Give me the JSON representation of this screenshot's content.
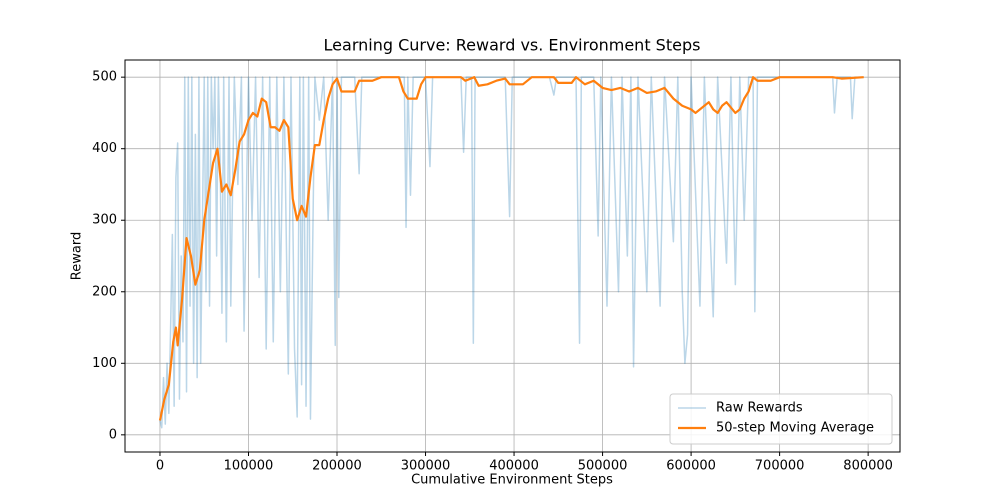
{
  "chart_data": {
    "type": "line",
    "title": "Learning Curve: Reward vs. Environment Steps",
    "x_label": "Cumulative Environment Steps",
    "y_label": "Reward",
    "xlim": [
      -39500,
      836000
    ],
    "ylim": [
      -24,
      524
    ],
    "xticks": [
      0,
      100000,
      200000,
      300000,
      400000,
      500000,
      600000,
      700000,
      800000
    ],
    "yticks": [
      0,
      100,
      200,
      300,
      400,
      500
    ],
    "grid": true,
    "legend": "lower right",
    "series": [
      {
        "name": "Raw Rewards",
        "color": "#1f77b4",
        "opacity": 0.3,
        "width": 1.5,
        "x": [
          0,
          2000,
          4000,
          6000,
          8000,
          10000,
          12000,
          14000,
          16000,
          18000,
          20000,
          22000,
          24000,
          26000,
          28000,
          30000,
          32000,
          34000,
          36000,
          38000,
          40000,
          42000,
          44000,
          46000,
          48000,
          50000,
          52000,
          54000,
          56000,
          58000,
          60000,
          62000,
          64000,
          66000,
          68000,
          70000,
          72000,
          75000,
          78000,
          80000,
          84000,
          88000,
          92000,
          95000,
          100000,
          104000,
          108000,
          112000,
          116000,
          120000,
          124000,
          128000,
          132000,
          136000,
          140000,
          145000,
          148000,
          152000,
          155000,
          158000,
          160000,
          162000,
          165000,
          168000,
          170000,
          175000,
          180000,
          185000,
          190000,
          195000,
          198000,
          200000,
          202000,
          205000,
          220000,
          225000,
          228000,
          260000,
          276000,
          278000,
          280000,
          283000,
          286000,
          300000,
          305000,
          308000,
          340000,
          343000,
          346000,
          352000,
          354000,
          356000,
          390000,
          395000,
          398000,
          420000,
          440000,
          445000,
          448000,
          470000,
          474000,
          476000,
          490000,
          495000,
          498000,
          505000,
          510000,
          518000,
          522000,
          528000,
          532000,
          535000,
          540000,
          550000,
          555000,
          565000,
          570000,
          580000,
          585000,
          590000,
          593000,
          596000,
          600000,
          610000,
          615000,
          625000,
          630000,
          640000,
          645000,
          650000,
          655000,
          660000,
          665000,
          670000,
          672000,
          675000,
          760000,
          762000,
          765000,
          780000,
          782000,
          785000,
          795000
        ],
        "values": [
          20,
          10,
          80,
          15,
          100,
          30,
          150,
          280,
          40,
          360,
          408,
          50,
          250,
          130,
          500,
          60,
          500,
          180,
          500,
          100,
          420,
          80,
          500,
          100,
          300,
          500,
          200,
          500,
          180,
          500,
          400,
          500,
          250,
          500,
          380,
          170,
          500,
          130,
          500,
          180,
          500,
          350,
          500,
          145,
          500,
          300,
          500,
          220,
          500,
          120,
          500,
          130,
          500,
          200,
          500,
          85,
          500,
          120,
          25,
          500,
          70,
          500,
          40,
          500,
          22,
          500,
          440,
          500,
          300,
          500,
          125,
          500,
          192,
          500,
          500,
          365,
          500,
          500,
          500,
          290,
          500,
          335,
          500,
          500,
          375,
          500,
          500,
          395,
          500,
          500,
          128,
          500,
          500,
          305,
          500,
          500,
          500,
          475,
          500,
          500,
          128,
          500,
          500,
          278,
          500,
          180,
          500,
          200,
          500,
          250,
          500,
          95,
          500,
          200,
          500,
          180,
          500,
          270,
          500,
          200,
          100,
          140,
          500,
          180,
          500,
          165,
          500,
          240,
          500,
          210,
          500,
          300,
          500,
          500,
          172,
          500,
          500,
          450,
          500,
          500,
          442,
          500,
          500
        ]
      },
      {
        "name": "50-step Moving Average",
        "color": "#ff7f0e",
        "opacity": 1,
        "width": 2.2,
        "x": [
          0,
          5000,
          10000,
          15000,
          18000,
          20000,
          25000,
          30000,
          35000,
          40000,
          45000,
          50000,
          55000,
          60000,
          65000,
          70000,
          75000,
          80000,
          85000,
          90000,
          95000,
          100000,
          105000,
          110000,
          115000,
          120000,
          125000,
          130000,
          135000,
          140000,
          145000,
          150000,
          155000,
          160000,
          165000,
          170000,
          175000,
          180000,
          185000,
          190000,
          195000,
          200000,
          205000,
          220000,
          225000,
          240000,
          250000,
          270000,
          275000,
          280000,
          290000,
          295000,
          300000,
          330000,
          340000,
          345000,
          355000,
          360000,
          370000,
          380000,
          390000,
          395000,
          410000,
          420000,
          440000,
          445000,
          450000,
          465000,
          470000,
          480000,
          490000,
          500000,
          510000,
          520000,
          530000,
          540000,
          550000,
          560000,
          570000,
          580000,
          590000,
          600000,
          605000,
          610000,
          620000,
          625000,
          630000,
          635000,
          640000,
          650000,
          655000,
          660000,
          665000,
          670000,
          675000,
          690000,
          700000,
          740000,
          760000,
          770000,
          795000
        ],
        "values": [
          20,
          50,
          70,
          130,
          150,
          125,
          190,
          275,
          250,
          210,
          230,
          300,
          340,
          380,
          400,
          340,
          350,
          335,
          370,
          410,
          420,
          440,
          450,
          445,
          470,
          465,
          430,
          430,
          425,
          440,
          430,
          330,
          300,
          320,
          305,
          360,
          405,
          405,
          440,
          470,
          490,
          498,
          480,
          480,
          495,
          495,
          500,
          500,
          480,
          470,
          470,
          490,
          500,
          500,
          500,
          495,
          500,
          488,
          490,
          495,
          498,
          490,
          490,
          500,
          500,
          500,
          492,
          492,
          500,
          490,
          495,
          485,
          482,
          485,
          480,
          485,
          478,
          480,
          485,
          470,
          460,
          455,
          450,
          455,
          465,
          455,
          450,
          460,
          465,
          450,
          455,
          470,
          480,
          500,
          495,
          495,
          500,
          500,
          500,
          498,
          500
        ]
      }
    ]
  }
}
